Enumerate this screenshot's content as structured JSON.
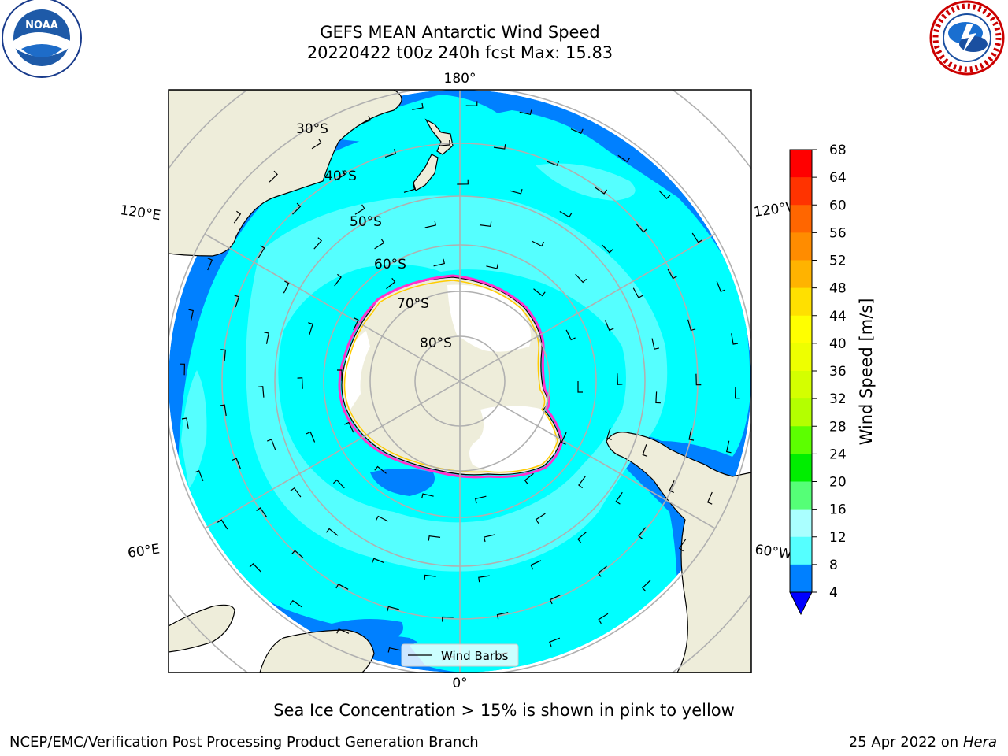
{
  "title_line1": "GEFS MEAN Antarctic Wind Speed",
  "title_line2": "20220422 t00z 240h fcst   Max: 15.83",
  "graticule": {
    "longitude_labels": [
      "180°",
      "120°E",
      "120°W",
      "60°E",
      "60°W",
      "0°"
    ],
    "latitude_labels": [
      "30°S",
      "40°S",
      "50°S",
      "60°S",
      "70°S",
      "80°S"
    ]
  },
  "legend": {
    "label": "Wind Barbs"
  },
  "colorbar": {
    "label": "Wind Speed [m/s]",
    "ticks": [
      "68",
      "64",
      "60",
      "56",
      "52",
      "48",
      "44",
      "40",
      "36",
      "32",
      "28",
      "24",
      "20",
      "16",
      "12",
      "8",
      "4"
    ],
    "colors": [
      "#ff0000",
      "#ff3300",
      "#ff6600",
      "#ff8c00",
      "#ffb300",
      "#ffe000",
      "#ffff00",
      "#eeff00",
      "#d4ff00",
      "#b4ff00",
      "#5cff00",
      "#00ee00",
      "#55ff77",
      "#aaffff",
      "#55ffff",
      "#00ffff",
      "#0080ff"
    ],
    "under_color": "#0000ff"
  },
  "chart_data": {
    "type": "heatmap",
    "projection": "south-polar-stereographic",
    "variable": "Wind Speed",
    "units": "m/s",
    "max": 15.83,
    "levels": [
      4,
      8,
      12,
      16,
      20,
      24,
      28,
      32,
      36,
      40,
      44,
      48,
      52,
      56,
      60,
      64,
      68
    ]
  },
  "caption": "Sea Ice Concentration > 15% is shown in pink to yellow",
  "footer": {
    "left": "NCEP/EMC/Verification Post Processing Product Generation Branch",
    "right_date": "25 Apr 2022 on ",
    "right_host": "Hera"
  },
  "colors": {
    "land": "#eeedda",
    "ocean_low": "#0080ff",
    "ocean_mid": "#00ffff",
    "ocean_high": "#55ffff",
    "ice_edge": "#ff33cc"
  }
}
